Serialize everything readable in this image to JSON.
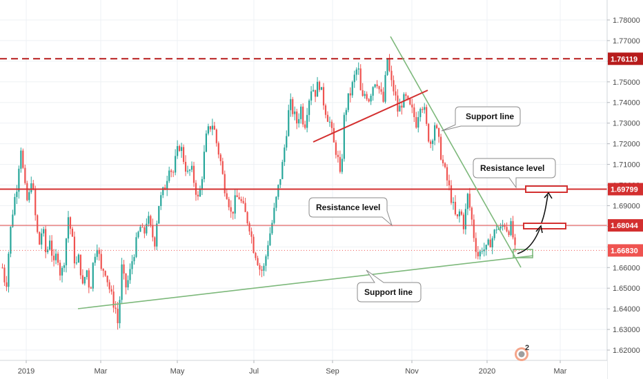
{
  "chart_data": {
    "type": "candlestick",
    "x_ticks": [
      "2019",
      "Mar",
      "May",
      "Jul",
      "Sep",
      "Nov",
      "2020",
      "Mar"
    ],
    "y_ticks": [
      1.62,
      1.63,
      1.64,
      1.65,
      1.66,
      1.67,
      1.68,
      1.69,
      1.7,
      1.71,
      1.72,
      1.73,
      1.74,
      1.75,
      1.76,
      1.77,
      1.78
    ],
    "ylim": [
      1.615,
      1.785
    ],
    "price_tags": [
      {
        "label": "1.76119",
        "value": 1.76119,
        "style": "dashed",
        "color": "#b71c1c"
      },
      {
        "label": "1.69799",
        "value": 1.69799,
        "style": "solid",
        "color": "#d32f2f"
      },
      {
        "label": "1.68044",
        "value": 1.68044,
        "style": "solid",
        "color": "#d32f2f"
      },
      {
        "label": "1.66830",
        "value": 1.6683,
        "style": "dotted",
        "color": "#ef5350"
      }
    ],
    "annotations": [
      {
        "name": "support-line-callout-top",
        "text": "Support line"
      },
      {
        "name": "resistance-level-callout-top",
        "text": "Resistance level"
      },
      {
        "name": "resistance-level-callout-mid",
        "text": "Resistance level"
      },
      {
        "name": "support-line-callout-bottom",
        "text": "Support line"
      }
    ],
    "trend_lines": [
      {
        "name": "long-support-line",
        "color": "#7cb87a",
        "from": [
          "2019-02-10",
          1.641
        ],
        "to": [
          "2020-02-25",
          1.6665
        ]
      },
      {
        "name": "descending-line",
        "color": "#7cb87a",
        "from": [
          "2019-09-30",
          1.77
        ],
        "to": [
          "2020-02-18",
          1.661
        ]
      },
      {
        "name": "rising-red-line",
        "color": "#d32f2f",
        "from": [
          "2019-08-20",
          1.72
        ],
        "to": [
          "2019-11-15",
          1.745
        ]
      }
    ],
    "price_path": [
      [
        0,
        1.66
      ],
      [
        0.6,
        1.65
      ],
      [
        1.2,
        1.675
      ],
      [
        1.8,
        1.69
      ],
      [
        2.4,
        1.7
      ],
      [
        3.0,
        1.72
      ],
      [
        3.6,
        1.7
      ],
      [
        4.2,
        1.69
      ],
      [
        4.8,
        1.705
      ],
      [
        5.4,
        1.685
      ],
      [
        6.0,
        1.67
      ],
      [
        6.6,
        1.68
      ],
      [
        7.2,
        1.665
      ],
      [
        7.8,
        1.675
      ],
      [
        8.4,
        1.66
      ],
      [
        9.0,
        1.668
      ],
      [
        9.6,
        1.655
      ],
      [
        10.2,
        1.665
      ],
      [
        10.8,
        1.685
      ],
      [
        11.4,
        1.675
      ],
      [
        12.0,
        1.66
      ],
      [
        12.6,
        1.665
      ],
      [
        13.2,
        1.65
      ],
      [
        13.8,
        1.66
      ],
      [
        14.4,
        1.648
      ],
      [
        15.0,
        1.665
      ],
      [
        15.6,
        1.672
      ],
      [
        16.2,
        1.658
      ],
      [
        16.8,
        1.66
      ],
      [
        17.4,
        1.652
      ],
      [
        18.0,
        1.645
      ],
      [
        18.6,
        1.64
      ],
      [
        19.0,
        1.632
      ],
      [
        19.6,
        1.66
      ],
      [
        20.2,
        1.65
      ],
      [
        20.8,
        1.655
      ],
      [
        21.4,
        1.665
      ],
      [
        22.0,
        1.672
      ],
      [
        22.6,
        1.68
      ],
      [
        23.2,
        1.675
      ],
      [
        23.8,
        1.685
      ],
      [
        24.4,
        1.678
      ],
      [
        25.0,
        1.672
      ],
      [
        25.6,
        1.69
      ],
      [
        26.2,
        1.695
      ],
      [
        26.8,
        1.7
      ],
      [
        27.4,
        1.71
      ],
      [
        28.0,
        1.705
      ],
      [
        28.6,
        1.715
      ],
      [
        29.2,
        1.72
      ],
      [
        29.8,
        1.712
      ],
      [
        30.4,
        1.705
      ],
      [
        31.0,
        1.708
      ],
      [
        31.6,
        1.7
      ],
      [
        32.2,
        1.692
      ],
      [
        32.8,
        1.705
      ],
      [
        33.4,
        1.722
      ],
      [
        34.0,
        1.728
      ],
      [
        34.6,
        1.73
      ],
      [
        35.2,
        1.72
      ],
      [
        35.8,
        1.712
      ],
      [
        36.4,
        1.7
      ],
      [
        37.0,
        1.695
      ],
      [
        37.6,
        1.685
      ],
      [
        38.2,
        1.692
      ],
      [
        38.8,
        1.695
      ],
      [
        39.4,
        1.69
      ],
      [
        40.0,
        1.685
      ],
      [
        40.6,
        1.68
      ],
      [
        41.2,
        1.67
      ],
      [
        41.8,
        1.665
      ],
      [
        42.4,
        1.658
      ],
      [
        43.0,
        1.66
      ],
      [
        43.6,
        1.672
      ],
      [
        44.2,
        1.68
      ],
      [
        44.8,
        1.69
      ],
      [
        45.4,
        1.7
      ],
      [
        46.0,
        1.71
      ],
      [
        46.6,
        1.725
      ],
      [
        47.2,
        1.74
      ],
      [
        47.8,
        1.735
      ],
      [
        48.4,
        1.73
      ],
      [
        49.0,
        1.738
      ],
      [
        49.6,
        1.728
      ],
      [
        50.2,
        1.74
      ],
      [
        50.8,
        1.748
      ],
      [
        51.4,
        1.745
      ],
      [
        52.0,
        1.75
      ],
      [
        52.6,
        1.742
      ],
      [
        53.2,
        1.735
      ],
      [
        53.8,
        1.73
      ],
      [
        54.4,
        1.72
      ],
      [
        55.0,
        1.715
      ],
      [
        55.6,
        1.7
      ],
      [
        56.0,
        1.73
      ],
      [
        56.6,
        1.74
      ],
      [
        57.2,
        1.745
      ],
      [
        57.8,
        1.752
      ],
      [
        58.4,
        1.758
      ],
      [
        59.0,
        1.74
      ],
      [
        59.6,
        1.745
      ],
      [
        60.2,
        1.742
      ],
      [
        60.8,
        1.748
      ],
      [
        61.4,
        1.752
      ],
      [
        62.0,
        1.745
      ],
      [
        62.6,
        1.74
      ],
      [
        63.2,
        1.762
      ],
      [
        63.8,
        1.75
      ],
      [
        64.4,
        1.745
      ],
      [
        65.0,
        1.735
      ],
      [
        65.6,
        1.74
      ],
      [
        66.2,
        1.742
      ],
      [
        66.8,
        1.738
      ],
      [
        67.4,
        1.735
      ],
      [
        68.0,
        1.73
      ],
      [
        68.6,
        1.74
      ],
      [
        69.2,
        1.738
      ],
      [
        69.8,
        1.725
      ],
      [
        70.4,
        1.72
      ],
      [
        71.0,
        1.73
      ],
      [
        71.6,
        1.722
      ],
      [
        72.2,
        1.712
      ],
      [
        72.8,
        1.705
      ],
      [
        73.4,
        1.698
      ],
      [
        74.0,
        1.69
      ],
      [
        74.6,
        1.682
      ],
      [
        75.2,
        1.688
      ],
      [
        75.8,
        1.68
      ],
      [
        76.4,
        1.695
      ],
      [
        77.0,
        1.685
      ],
      [
        77.6,
        1.672
      ],
      [
        78.2,
        1.665
      ],
      [
        78.8,
        1.67
      ],
      [
        79.4,
        1.668
      ],
      [
        80.0,
        1.672
      ],
      [
        80.6,
        1.675
      ],
      [
        81.2,
        1.68
      ],
      [
        81.8,
        1.678
      ],
      [
        82.4,
        1.682
      ],
      [
        83.0,
        1.678
      ],
      [
        83.6,
        1.68
      ],
      [
        84.2,
        1.668
      ]
    ]
  },
  "callouts": {
    "support_top": "Support line",
    "resistance_top": "Resistance level",
    "resistance_mid": "Resistance level",
    "support_bottom": "Support line"
  },
  "colors": {
    "up": "#26a69a",
    "down": "#ef5350",
    "grid": "#eef1f4",
    "axis": "#d0d4da",
    "support": "#7cb87a",
    "resistance": "#d32f2f"
  },
  "watermark_icon": "chart-logo-icon",
  "watermark_badge": "2"
}
